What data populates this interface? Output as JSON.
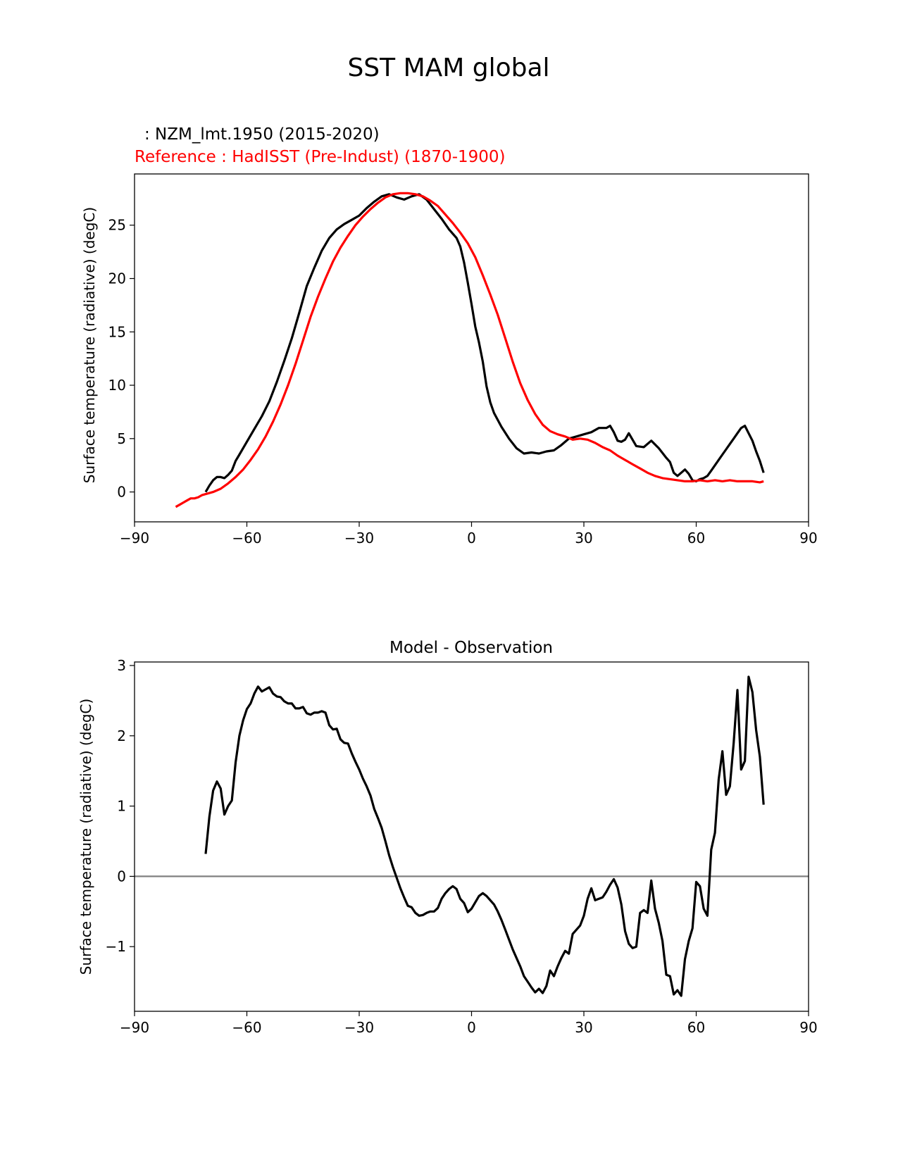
{
  "figure": {
    "suptitle": "SST MAM global"
  },
  "colors": {
    "model": "#000000",
    "reference": "#ff0000",
    "zero_line": "#808080"
  },
  "chart_data": [
    {
      "type": "line",
      "title_model": ": NZM_lmt.1950 (2015-2020)",
      "title_reference": "Reference : HadISST (Pre-Indust) (1870-1900)",
      "xlabel": "",
      "ylabel": "Surface temperature (radiative) (degC)",
      "xlim": [
        -90,
        90
      ],
      "ylim": [
        -2.8,
        29.8
      ],
      "xticks": [
        -90,
        -60,
        -30,
        0,
        30,
        60,
        90
      ],
      "xtick_labels": [
        "−90",
        "−60",
        "−30",
        "0",
        "30",
        "60",
        "90"
      ],
      "yticks": [
        0,
        5,
        10,
        15,
        20,
        25
      ],
      "ytick_labels": [
        "0",
        "5",
        "10",
        "15",
        "20",
        "25"
      ],
      "series": [
        {
          "name": "NZM_lmt.1950 (2015-2020)",
          "color": "#000000",
          "x": [
            -71,
            -70,
            -69,
            -68,
            -67,
            -66,
            -65,
            -64,
            -63,
            -62,
            -60,
            -58,
            -56,
            -54,
            -52,
            -50,
            -48,
            -46,
            -44,
            -42,
            -40,
            -38,
            -36,
            -34,
            -32,
            -30,
            -28,
            -26,
            -24,
            -22,
            -20,
            -18,
            -16,
            -14,
            -12,
            -10,
            -8,
            -6,
            -4,
            -3,
            -2,
            -1,
            0,
            1,
            2,
            3,
            4,
            5,
            6,
            8,
            10,
            12,
            14,
            16,
            18,
            20,
            22,
            24,
            26,
            28,
            30,
            32,
            34,
            36,
            37,
            38,
            39,
            40,
            41,
            42,
            44,
            46,
            48,
            50,
            52,
            53,
            54,
            55,
            56,
            57,
            58,
            59,
            60,
            61,
            62,
            63,
            64,
            65,
            66,
            67,
            68,
            69,
            70,
            71,
            72,
            73,
            74,
            75,
            76,
            77,
            78
          ],
          "y": [
            0.0,
            0.6,
            1.1,
            1.4,
            1.4,
            1.3,
            1.6,
            2.0,
            2.9,
            3.5,
            4.7,
            5.9,
            7.1,
            8.5,
            10.3,
            12.3,
            14.4,
            16.8,
            19.3,
            21.0,
            22.6,
            23.8,
            24.6,
            25.1,
            25.5,
            25.9,
            26.6,
            27.2,
            27.7,
            27.9,
            27.6,
            27.4,
            27.7,
            27.9,
            27.4,
            26.5,
            25.6,
            24.6,
            23.8,
            23.0,
            21.5,
            19.6,
            17.6,
            15.5,
            14.0,
            12.2,
            9.9,
            8.4,
            7.4,
            6.1,
            5.0,
            4.1,
            3.6,
            3.7,
            3.6,
            3.8,
            3.9,
            4.4,
            5.0,
            5.2,
            5.4,
            5.6,
            6.0,
            6.0,
            6.2,
            5.6,
            4.8,
            4.7,
            4.9,
            5.5,
            4.3,
            4.2,
            4.8,
            4.1,
            3.2,
            2.8,
            1.8,
            1.5,
            1.8,
            2.1,
            1.7,
            1.1,
            1.0,
            1.2,
            1.3,
            1.5,
            2.0,
            2.5,
            3.0,
            3.5,
            4.0,
            4.5,
            5.0,
            5.5,
            6.0,
            6.2,
            5.5,
            4.8,
            3.8,
            2.9,
            1.8
          ],
          "note": "values digitized from plot"
        },
        {
          "name": "HadISST (Pre-Indust) (1870-1900)",
          "color": "#ff0000",
          "x": [
            -79,
            -78,
            -77,
            -76,
            -75,
            -74,
            -73,
            -72,
            -71,
            -69,
            -67,
            -65,
            -63,
            -61,
            -59,
            -57,
            -55,
            -53,
            -51,
            -49,
            -47,
            -45,
            -43,
            -41,
            -39,
            -37,
            -35,
            -33,
            -31,
            -29,
            -27,
            -25,
            -23,
            -21,
            -19,
            -17,
            -15,
            -13,
            -11,
            -9,
            -7,
            -5,
            -3,
            -1,
            1,
            3,
            5,
            7,
            9,
            11,
            13,
            15,
            17,
            19,
            21,
            23,
            25,
            27,
            29,
            31,
            33,
            35,
            37,
            39,
            41,
            43,
            45,
            47,
            49,
            51,
            53,
            55,
            57,
            59,
            61,
            63,
            65,
            67,
            69,
            71,
            73,
            75,
            77,
            78
          ],
          "y": [
            -1.4,
            -1.2,
            -1.0,
            -0.8,
            -0.6,
            -0.6,
            -0.5,
            -0.3,
            -0.2,
            0.0,
            0.3,
            0.8,
            1.4,
            2.1,
            3.0,
            4.0,
            5.2,
            6.6,
            8.2,
            10.0,
            12.0,
            14.2,
            16.4,
            18.3,
            20.0,
            21.6,
            22.9,
            24.0,
            25.0,
            25.8,
            26.5,
            27.1,
            27.6,
            27.9,
            28.0,
            28.0,
            27.9,
            27.7,
            27.3,
            26.8,
            26.0,
            25.2,
            24.3,
            23.3,
            22.0,
            20.3,
            18.5,
            16.6,
            14.4,
            12.2,
            10.2,
            8.6,
            7.3,
            6.3,
            5.7,
            5.4,
            5.2,
            4.9,
            5.0,
            4.9,
            4.6,
            4.2,
            3.9,
            3.4,
            3.0,
            2.6,
            2.2,
            1.8,
            1.5,
            1.3,
            1.2,
            1.1,
            1.0,
            1.0,
            1.1,
            1.0,
            1.1,
            1.0,
            1.1,
            1.0,
            1.0,
            1.0,
            0.9,
            1.0
          ],
          "note": "values digitized from plot"
        }
      ]
    },
    {
      "type": "line",
      "title": "Model - Observation",
      "xlabel": "",
      "ylabel": "Surface temperature (radiative) (degC)",
      "xlim": [
        -90,
        90
      ],
      "ylim": [
        -1.92,
        3.05
      ],
      "xticks": [
        -90,
        -60,
        -30,
        0,
        30,
        60,
        90
      ],
      "xtick_labels": [
        "−90",
        "−60",
        "−30",
        "0",
        "30",
        "60",
        "90"
      ],
      "yticks": [
        -1,
        0,
        1,
        2,
        3
      ],
      "ytick_labels": [
        "−1",
        "0",
        "1",
        "2",
        "3"
      ],
      "hline": 0,
      "series": [
        {
          "name": "Model - Observation",
          "color": "#000000",
          "x": [
            -71,
            -70,
            -69,
            -68,
            -67,
            -66,
            -65,
            -64,
            -63,
            -62,
            -61,
            -60,
            -59,
            -58,
            -57,
            -56,
            -55,
            -54,
            -53,
            -52,
            -51,
            -50,
            -49,
            -48,
            -47,
            -46,
            -45,
            -44,
            -43,
            -42,
            -41,
            -40,
            -39,
            -38,
            -37,
            -36,
            -35,
            -34,
            -33,
            -32,
            -31,
            -30,
            -29,
            -28,
            -27,
            -26,
            -25,
            -24,
            -23,
            -22,
            -21,
            -20,
            -19,
            -18,
            -17,
            -16,
            -15,
            -14,
            -13,
            -12,
            -11,
            -10,
            -9,
            -8,
            -7,
            -6,
            -5,
            -4,
            -3,
            -2,
            -1,
            0,
            1,
            2,
            3,
            4,
            5,
            6,
            7,
            8,
            9,
            10,
            11,
            12,
            13,
            14,
            15,
            16,
            17,
            18,
            19,
            20,
            21,
            22,
            23,
            24,
            25,
            26,
            27,
            28,
            29,
            30,
            31,
            32,
            33,
            34,
            35,
            36,
            37,
            38,
            39,
            40,
            41,
            42,
            43,
            44,
            45,
            46,
            47,
            48,
            49,
            50,
            51,
            52,
            53,
            54,
            55,
            56,
            57,
            58,
            59,
            60,
            61,
            62,
            63,
            64,
            65,
            66,
            67,
            68,
            69,
            70,
            71,
            72,
            73,
            74,
            75,
            76,
            77,
            78
          ],
          "y": [
            0.32,
            0.85,
            1.22,
            1.35,
            1.25,
            0.88,
            1.0,
            1.08,
            1.62,
            2.0,
            2.22,
            2.38,
            2.46,
            2.6,
            2.7,
            2.63,
            2.66,
            2.69,
            2.6,
            2.56,
            2.55,
            2.49,
            2.46,
            2.46,
            2.39,
            2.39,
            2.41,
            2.32,
            2.3,
            2.33,
            2.33,
            2.35,
            2.33,
            2.15,
            2.09,
            2.1,
            1.95,
            1.9,
            1.89,
            1.75,
            1.63,
            1.52,
            1.39,
            1.28,
            1.15,
            0.96,
            0.83,
            0.69,
            0.5,
            0.3,
            0.13,
            -0.02,
            -0.17,
            -0.3,
            -0.42,
            -0.44,
            -0.52,
            -0.56,
            -0.55,
            -0.52,
            -0.5,
            -0.5,
            -0.45,
            -0.32,
            -0.24,
            -0.18,
            -0.14,
            -0.18,
            -0.32,
            -0.38,
            -0.51,
            -0.46,
            -0.37,
            -0.28,
            -0.24,
            -0.28,
            -0.34,
            -0.4,
            -0.5,
            -0.62,
            -0.76,
            -0.9,
            -1.04,
            -1.16,
            -1.28,
            -1.42,
            -1.5,
            -1.58,
            -1.65,
            -1.6,
            -1.66,
            -1.56,
            -1.34,
            -1.42,
            -1.28,
            -1.16,
            -1.06,
            -1.1,
            -0.82,
            -0.76,
            -0.7,
            -0.56,
            -0.32,
            -0.17,
            -0.34,
            -0.32,
            -0.3,
            -0.22,
            -0.12,
            -0.04,
            -0.16,
            -0.4,
            -0.78,
            -0.96,
            -1.02,
            -1.0,
            -0.52,
            -0.48,
            -0.52,
            -0.06,
            -0.46,
            -0.66,
            -0.92,
            -1.4,
            -1.42,
            -1.68,
            -1.62,
            -1.7,
            -1.18,
            -0.92,
            -0.74,
            -0.08,
            -0.14,
            -0.46,
            -0.56,
            0.38,
            0.62,
            1.38,
            1.78,
            1.16,
            1.28,
            1.9,
            2.65,
            1.52,
            1.64,
            2.84,
            2.62,
            2.08,
            1.7,
            1.02
          ],
          "note": "values digitized from plot"
        }
      ]
    }
  ]
}
